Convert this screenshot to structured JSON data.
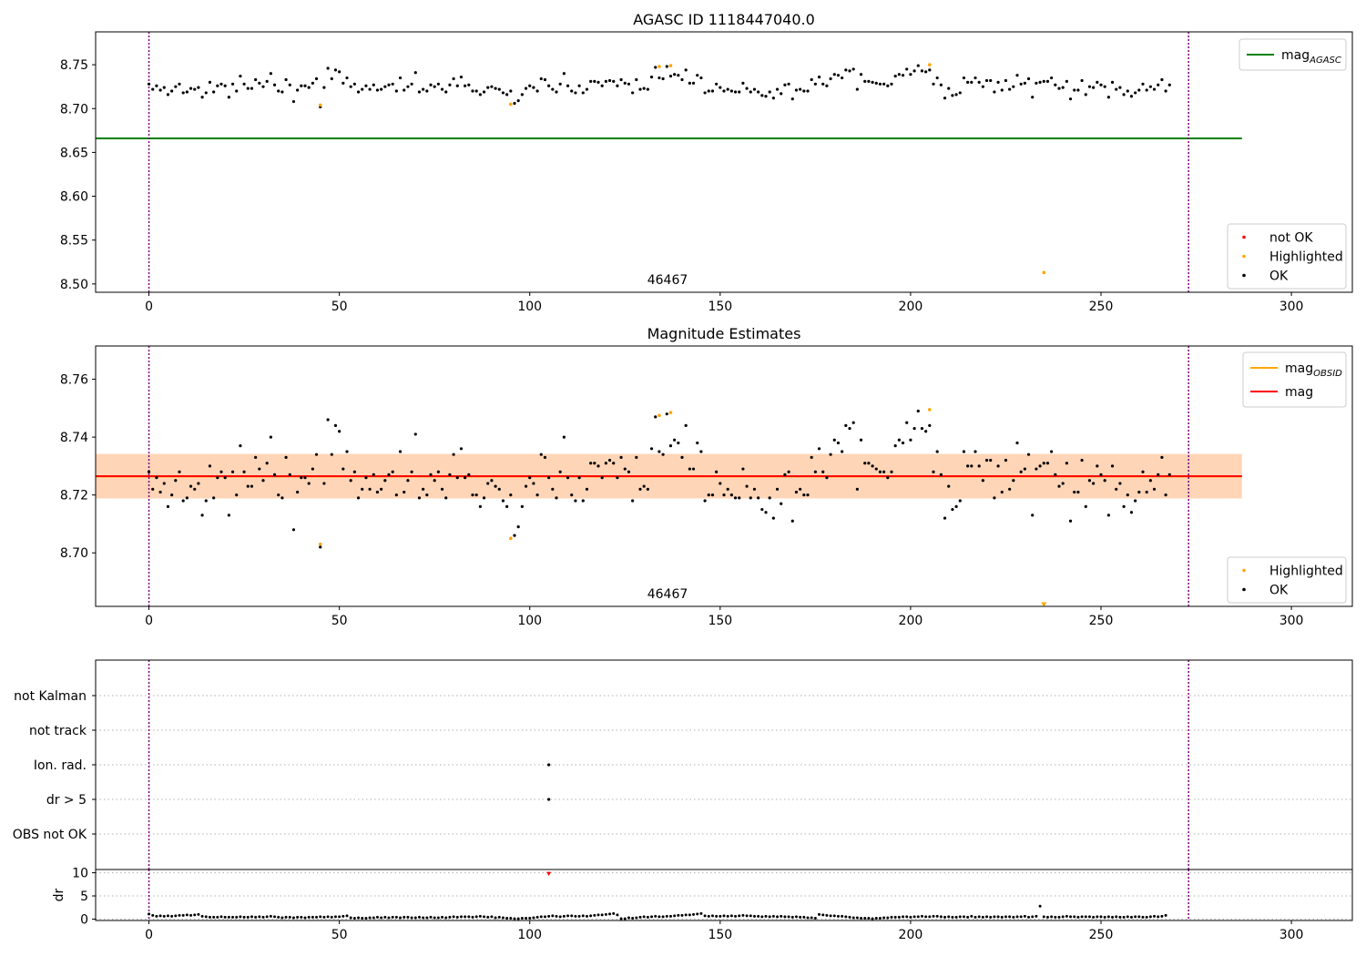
{
  "colors": {
    "ok": "#000000",
    "highlighted": "#ffa500",
    "not_ok": "#ff0000",
    "agasc_line": "#008000",
    "mag_line": "#ff0000",
    "mag_obsid_line": "#ffa500",
    "band_obsid": "#ffa500",
    "band_mag": "#ff0000",
    "obsid_boundary": "#800080",
    "grid": "#b0b0b0"
  },
  "chart_data": [
    {
      "id": "top",
      "type": "scatter",
      "title": "AGASC ID 1118447040.0",
      "xlim": [
        -14,
        316
      ],
      "ylim": [
        8.4905,
        8.7875
      ],
      "xticks": [
        0,
        50,
        100,
        150,
        200,
        250,
        300
      ],
      "yticks": [
        8.5,
        8.55,
        8.6,
        8.65,
        8.7,
        8.75
      ],
      "ytick_labels": [
        "8.50",
        "8.55",
        "8.60",
        "8.65",
        "8.70",
        "8.75"
      ],
      "obsid_boundaries": [
        0,
        273
      ],
      "obsid_label": {
        "text": "46467",
        "x": 136.5
      },
      "hlines": [
        {
          "name": "mag",
          "sub": "AGASC",
          "y": 8.666,
          "x0": -14,
          "x1": 287,
          "color": "#008000"
        }
      ],
      "legend_upper": [
        {
          "label": "mag",
          "sub": "AGASC",
          "kind": "line",
          "color": "#008000"
        }
      ],
      "legend_lower": [
        {
          "label": "not OK",
          "kind": "dot",
          "color": "#ff0000"
        },
        {
          "label": "Highlighted",
          "kind": "dot",
          "color": "#ffa500"
        },
        {
          "label": "OK",
          "kind": "dot",
          "color": "#000000"
        }
      ],
      "highlighted_points": [
        {
          "x": 45,
          "y": 8.704
        },
        {
          "x": 95,
          "y": 8.705
        },
        {
          "x": 134,
          "y": 8.748
        },
        {
          "x": 137,
          "y": 8.749
        },
        {
          "x": 205,
          "y": 8.75
        },
        {
          "x": 235,
          "y": 8.513
        }
      ],
      "ok_series": "ok_mag"
    },
    {
      "id": "middle",
      "type": "scatter",
      "title": "Magnitude Estimates",
      "xlim": [
        -14,
        316
      ],
      "ylim": [
        8.6815,
        8.7715
      ],
      "xticks": [
        0,
        50,
        100,
        150,
        200,
        250,
        300
      ],
      "yticks": [
        8.7,
        8.72,
        8.74,
        8.76
      ],
      "ytick_labels": [
        "8.70",
        "8.72",
        "8.74",
        "8.76"
      ],
      "obsid_boundaries": [
        0,
        273
      ],
      "obsid_label": {
        "text": "46467",
        "x": 136.5
      },
      "hlines": [
        {
          "name": "mag",
          "sub": "OBSID",
          "y": 8.7264,
          "x0": -14,
          "x1": 287,
          "color": "#ffa500"
        },
        {
          "name": "mag",
          "sub": "",
          "y": 8.7265,
          "x0": -14,
          "x1": 287,
          "color": "#ff0000"
        }
      ],
      "bands": [
        {
          "y0": 8.7188,
          "y1": 8.7342,
          "x0": -14,
          "x1": 287,
          "color": "#ff0000",
          "opacity": 0.12
        },
        {
          "y0": 8.7188,
          "y1": 8.7342,
          "x0": -14,
          "x1": 287,
          "color": "#ffa500",
          "opacity": 0.18
        }
      ],
      "legend_upper": [
        {
          "label": "mag",
          "sub": "OBSID",
          "kind": "line",
          "color": "#ffa500"
        },
        {
          "label": "mag",
          "sub": "",
          "kind": "line",
          "color": "#ff0000"
        }
      ],
      "legend_lower": [
        {
          "label": "Highlighted",
          "kind": "dot",
          "color": "#ffa500"
        },
        {
          "label": "OK",
          "kind": "dot",
          "color": "#000000"
        }
      ],
      "highlighted_points": [
        {
          "x": 45,
          "y": 8.703
        },
        {
          "x": 95,
          "y": 8.705
        },
        {
          "x": 134,
          "y": 8.7475
        },
        {
          "x": 137,
          "y": 8.7485
        },
        {
          "x": 205,
          "y": 8.7495
        }
      ],
      "offscale_marker": {
        "x": 235,
        "y": 8.6823
      },
      "ok_series": "ok_mag"
    },
    {
      "id": "flags",
      "type": "scatter",
      "xlim": [
        -14,
        316
      ],
      "categories": [
        "not Kalman",
        "not track",
        "Ion. rad.",
        "dr > 5",
        "OBS not OK"
      ],
      "obsid_boundaries": [
        0,
        273
      ],
      "points": [
        {
          "x": 105,
          "category": "Ion. rad."
        },
        {
          "x": 105,
          "category": "dr > 5"
        }
      ]
    },
    {
      "id": "dr",
      "type": "scatter",
      "xlim": [
        -14,
        316
      ],
      "ylim": [
        -0.3,
        10.7
      ],
      "ylabel": "dr",
      "xticks": [
        0,
        50,
        100,
        150,
        200,
        250,
        300
      ],
      "yticks": [
        0,
        5,
        10
      ],
      "ytick_labels": [
        "0",
        "5",
        "10"
      ],
      "obsid_boundaries": [
        0,
        273
      ],
      "not_ok_points": [
        {
          "x": 105,
          "y": 9.8
        }
      ],
      "ok_series": "ok_dr"
    }
  ],
  "series": {
    "ok_mag": [
      8.728,
      8.722,
      8.726,
      8.721,
      8.724,
      8.716,
      8.72,
      8.725,
      8.728,
      8.718,
      8.719,
      8.723,
      8.722,
      8.724,
      8.713,
      8.718,
      8.73,
      8.719,
      8.726,
      8.728,
      8.726,
      8.713,
      8.728,
      8.72,
      8.737,
      8.728,
      8.723,
      8.723,
      8.733,
      8.729,
      8.725,
      8.731,
      8.74,
      8.727,
      8.72,
      8.719,
      8.733,
      8.727,
      8.708,
      8.721,
      8.726,
      8.726,
      8.724,
      8.729,
      8.734,
      8.702,
      8.724,
      8.746,
      8.734,
      8.744,
      8.742,
      8.729,
      8.735,
      8.725,
      8.728,
      8.719,
      8.722,
      8.726,
      8.722,
      8.727,
      8.721,
      8.722,
      8.725,
      8.727,
      8.728,
      8.72,
      8.735,
      8.721,
      8.725,
      8.728,
      8.741,
      8.719,
      8.722,
      8.72,
      8.727,
      8.725,
      8.728,
      8.722,
      8.719,
      8.727,
      8.734,
      8.726,
      8.736,
      8.726,
      8.727,
      8.72,
      8.72,
      8.716,
      8.719,
      8.724,
      8.725,
      8.723,
      8.722,
      8.718,
      8.716,
      8.72,
      8.706,
      8.709,
      8.716,
      8.723,
      8.726,
      8.724,
      8.72,
      8.734,
      8.733,
      8.726,
      8.722,
      8.719,
      8.728,
      8.74,
      8.726,
      8.72,
      8.718,
      8.726,
      8.718,
      8.722,
      8.731,
      8.731,
      8.73,
      8.726,
      8.731,
      8.732,
      8.731,
      8.726,
      8.733,
      8.729,
      8.728,
      8.718,
      8.733,
      8.722,
      8.723,
      8.722,
      8.736,
      8.747,
      8.735,
      8.734,
      8.748,
      8.737,
      8.739,
      8.738,
      8.733,
      8.744,
      8.729,
      8.729,
      8.738,
      8.735,
      8.718,
      8.72,
      8.72,
      8.728,
      8.724,
      8.72,
      8.722,
      8.72,
      8.719,
      8.719,
      8.729,
      8.723,
      8.719,
      8.722,
      8.719,
      8.715,
      8.714,
      8.719,
      8.712,
      8.722,
      8.717,
      8.727,
      8.728,
      8.711,
      8.721,
      8.722,
      8.72,
      8.72,
      8.733,
      8.728,
      8.736,
      8.728,
      8.726,
      8.734,
      8.739,
      8.738,
      8.735,
      8.744,
      8.743,
      8.745,
      8.722,
      8.739,
      8.731,
      8.731,
      8.73,
      8.729,
      8.728,
      8.728,
      8.726,
      8.728,
      8.737,
      8.739,
      8.738,
      8.745,
      8.739,
      8.743,
      8.749,
      8.743,
      8.742,
      8.744,
      8.728,
      8.735,
      8.727,
      8.712,
      8.723,
      8.715,
      8.716,
      8.718,
      8.735,
      8.73,
      8.73,
      8.735,
      8.73,
      8.725,
      8.732,
      8.732,
      8.719,
      8.73,
      8.721,
      8.732,
      8.722,
      8.725,
      8.738,
      8.728,
      8.729,
      8.734,
      8.713,
      8.729,
      8.73,
      8.731,
      8.731,
      8.735,
      8.727,
      8.723,
      8.724,
      8.731,
      8.711,
      8.721,
      8.721,
      8.732,
      8.716,
      8.725,
      8.724,
      8.73,
      8.727,
      8.725,
      8.713,
      8.73,
      8.722,
      8.724,
      8.716,
      8.72,
      8.714,
      8.718,
      8.721,
      8.728,
      8.721,
      8.725,
      8.722,
      8.727,
      8.733,
      8.72,
      8.727
    ],
    "ok_dr": [
      1.1,
      0.8,
      0.6,
      0.7,
      0.6,
      0.7,
      0.6,
      0.7,
      0.8,
      0.8,
      0.9,
      0.8,
      0.9,
      1.0,
      0.6,
      0.5,
      0.4,
      0.4,
      0.4,
      0.5,
      0.4,
      0.4,
      0.4,
      0.4,
      0.5,
      0.4,
      0.4,
      0.5,
      0.4,
      0.5,
      0.4,
      0.5,
      0.6,
      0.5,
      0.4,
      0.3,
      0.4,
      0.4,
      0.3,
      0.4,
      0.4,
      0.3,
      0.4,
      0.4,
      0.4,
      0.5,
      0.4,
      0.5,
      0.4,
      0.5,
      0.5,
      0.6,
      0.7,
      0.3,
      0.2,
      0.3,
      0.2,
      0.2,
      0.3,
      0.3,
      0.4,
      0.3,
      0.4,
      0.3,
      0.4,
      0.4,
      0.3,
      0.4,
      0.4,
      0.3,
      0.3,
      0.4,
      0.3,
      0.3,
      0.4,
      0.3,
      0.3,
      0.4,
      0.3,
      0.4,
      0.5,
      0.4,
      0.5,
      0.5,
      0.5,
      0.4,
      0.5,
      0.6,
      0.5,
      0.4,
      0.5,
      0.3,
      0.4,
      0.3,
      0.2,
      0.2,
      0.1,
      0.1,
      0.2,
      0.2,
      0.2,
      0.3,
      0.4,
      0.5,
      0.5,
      0.6,
      0.7,
      0.6,
      0.5,
      0.6,
      0.7,
      0.7,
      0.6,
      0.6,
      0.7,
      0.6,
      0.7,
      0.8,
      0.9,
      0.9,
      1.0,
      1.1,
      1.2,
      0.9,
      0.1,
      0.1,
      0.3,
      0.2,
      0.3,
      0.4,
      0.5,
      0.4,
      0.5,
      0.6,
      0.5,
      0.5,
      0.6,
      0.6,
      0.7,
      0.8,
      0.8,
      0.9,
      0.9,
      1.0,
      1.1,
      1.2,
      0.7,
      0.6,
      0.7,
      0.6,
      0.6,
      0.7,
      0.6,
      0.7,
      0.6,
      0.7,
      0.8,
      0.7,
      0.7,
      0.6,
      0.6,
      0.5,
      0.6,
      0.5,
      0.6,
      0.5,
      0.6,
      0.5,
      0.5,
      0.4,
      0.5,
      0.4,
      0.4,
      0.3,
      0.3,
      0.2,
      1.0,
      0.9,
      0.8,
      0.7,
      0.7,
      0.6,
      0.6,
      0.5,
      0.4,
      0.3,
      0.3,
      0.2,
      0.2,
      0.2,
      0.1,
      0.2,
      0.2,
      0.3,
      0.3,
      0.4,
      0.4,
      0.4,
      0.5,
      0.5,
      0.4,
      0.5,
      0.5,
      0.6,
      0.5,
      0.5,
      0.6,
      0.6,
      0.5,
      0.4,
      0.5,
      0.4,
      0.4,
      0.5,
      0.5,
      0.4,
      0.6,
      0.4,
      0.5,
      0.4,
      0.5,
      0.4,
      0.5,
      0.5,
      0.4,
      0.5,
      0.5,
      0.4,
      0.5,
      0.5,
      0.6,
      0.4,
      0.5,
      0.6,
      2.8,
      0.5,
      0.4,
      0.5,
      0.4,
      0.4,
      0.5,
      0.6,
      0.5,
      0.5,
      0.4,
      0.5,
      0.5,
      0.5,
      0.4,
      0.5,
      0.5,
      0.4,
      0.5,
      0.4,
      0.5,
      0.4,
      0.4,
      0.5,
      0.4,
      0.5,
      0.5,
      0.4,
      0.4,
      0.5,
      0.6,
      0.5,
      0.6,
      0.8
    ]
  }
}
